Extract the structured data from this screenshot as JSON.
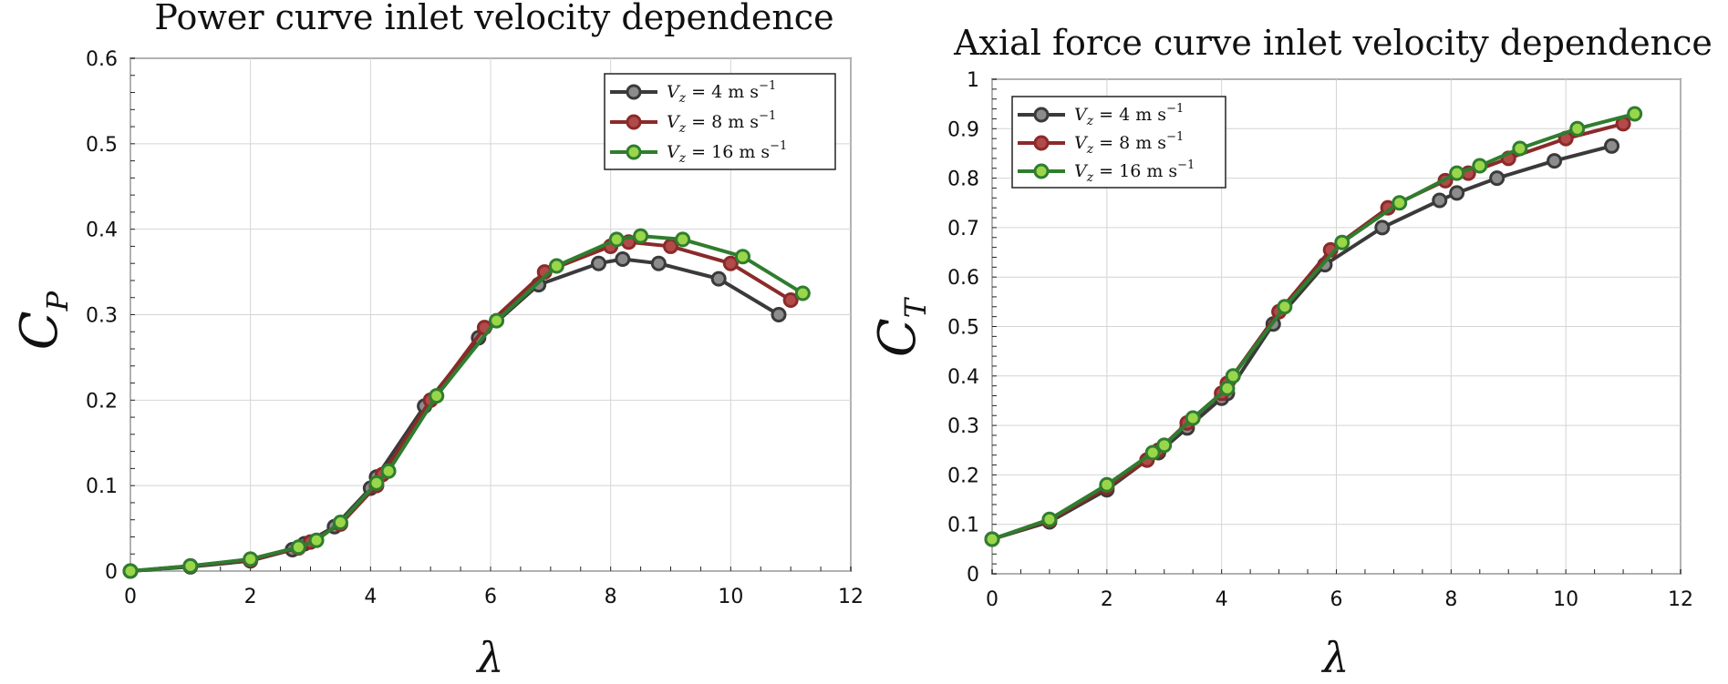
{
  "chart_data": [
    {
      "type": "line",
      "title": "Power curve inlet velocity dependence",
      "xlabel": "λ",
      "ylabel": {
        "main": "C",
        "sub": "P"
      },
      "xlim": [
        0,
        12
      ],
      "ylim": [
        0,
        0.6
      ],
      "xticks": [
        0,
        2,
        4,
        6,
        8,
        10,
        12
      ],
      "yticks": [
        0,
        0.1,
        0.2,
        0.3,
        0.4,
        0.5,
        0.6
      ],
      "grid": true,
      "legend_position": "top-right",
      "series": [
        {
          "name": "V_z = 4 m s^-1",
          "label_main": "V",
          "label_sub": "z",
          "label_rest": " = 4 m s",
          "label_sup": "−1",
          "color": "#3a3a3a",
          "marker_fill": "#8c8c8c",
          "x": [
            0,
            1,
            2,
            2.7,
            2.9,
            3.4,
            4.0,
            4.1,
            4.9,
            5.8,
            6.8,
            7.8,
            8.2,
            8.8,
            9.8,
            10.8
          ],
          "y": [
            0,
            0.005,
            0.012,
            0.025,
            0.032,
            0.052,
            0.097,
            0.11,
            0.193,
            0.273,
            0.335,
            0.36,
            0.365,
            0.36,
            0.342,
            0.3
          ]
        },
        {
          "name": "V_z = 8 m s^-1",
          "label_main": "V",
          "label_sub": "z",
          "label_rest": " = 8 m s",
          "label_sup": "−1",
          "color": "#8b2a2a",
          "marker_fill": "#b24a4a",
          "x": [
            0,
            1,
            2,
            2.8,
            3.0,
            3.5,
            4.1,
            4.2,
            5.0,
            5.9,
            6.9,
            8.0,
            8.3,
            9.0,
            10.0,
            11.0
          ],
          "y": [
            0,
            0.006,
            0.013,
            0.027,
            0.034,
            0.055,
            0.1,
            0.113,
            0.2,
            0.285,
            0.35,
            0.38,
            0.385,
            0.38,
            0.36,
            0.317
          ]
        },
        {
          "name": "V_z = 16 m s^-1",
          "label_main": "V",
          "label_sub": "z",
          "label_rest": " = 16 m s",
          "label_sup": "−1",
          "color": "#2f7d2f",
          "marker_fill": "#9ad64a",
          "x": [
            0,
            1,
            2,
            2.8,
            3.1,
            3.5,
            4.1,
            4.3,
            5.1,
            6.1,
            7.1,
            8.1,
            8.5,
            9.2,
            10.2,
            11.2
          ],
          "y": [
            0,
            0.006,
            0.014,
            0.028,
            0.036,
            0.057,
            0.103,
            0.117,
            0.205,
            0.293,
            0.357,
            0.388,
            0.392,
            0.388,
            0.368,
            0.325
          ]
        }
      ]
    },
    {
      "type": "line",
      "title": "Axial force curve inlet velocity dependence",
      "xlabel": "λ",
      "ylabel": {
        "main": "C",
        "sub": "T"
      },
      "xlim": [
        0,
        12
      ],
      "ylim": [
        0,
        1
      ],
      "xticks": [
        0,
        2,
        4,
        6,
        8,
        10,
        12
      ],
      "yticks": [
        0,
        0.1,
        0.2,
        0.3,
        0.4,
        0.5,
        0.6,
        0.7,
        0.8,
        0.9,
        1
      ],
      "grid": true,
      "legend_position": "top-left",
      "series": [
        {
          "name": "V_z = 4 m s^-1",
          "label_main": "V",
          "label_sub": "z",
          "label_rest": " = 4 m s",
          "label_sup": "−1",
          "color": "#3a3a3a",
          "marker_fill": "#8c8c8c",
          "x": [
            0,
            1,
            2,
            2.7,
            2.9,
            3.4,
            4.0,
            4.1,
            4.9,
            5.8,
            6.8,
            7.8,
            8.1,
            8.8,
            9.8,
            10.8
          ],
          "y": [
            0.07,
            0.105,
            0.17,
            0.23,
            0.245,
            0.295,
            0.355,
            0.365,
            0.505,
            0.625,
            0.7,
            0.755,
            0.77,
            0.8,
            0.835,
            0.865
          ]
        },
        {
          "name": "V_z = 8 m s^-1",
          "label_main": "V",
          "label_sub": "z",
          "label_rest": " = 8 m s",
          "label_sup": "−1",
          "color": "#8b2a2a",
          "marker_fill": "#b24a4a",
          "x": [
            0,
            1,
            2,
            2.7,
            2.9,
            3.4,
            4.0,
            4.1,
            5.0,
            5.9,
            6.9,
            7.9,
            8.3,
            9.0,
            10.0,
            11.0
          ],
          "y": [
            0.07,
            0.108,
            0.175,
            0.23,
            0.25,
            0.305,
            0.365,
            0.385,
            0.53,
            0.655,
            0.74,
            0.795,
            0.81,
            0.84,
            0.88,
            0.91
          ]
        },
        {
          "name": "V_z = 16 m s^-1",
          "label_main": "V",
          "label_sub": "z",
          "label_rest": " = 16 m s",
          "label_sup": "−1",
          "color": "#2f7d2f",
          "marker_fill": "#9ad64a",
          "x": [
            0,
            1,
            2,
            2.8,
            3.0,
            3.5,
            4.1,
            4.2,
            5.1,
            6.1,
            7.1,
            8.1,
            8.5,
            9.2,
            10.2,
            11.2
          ],
          "y": [
            0.07,
            0.11,
            0.18,
            0.245,
            0.26,
            0.315,
            0.375,
            0.4,
            0.54,
            0.67,
            0.75,
            0.81,
            0.825,
            0.86,
            0.9,
            0.93
          ]
        }
      ]
    }
  ]
}
